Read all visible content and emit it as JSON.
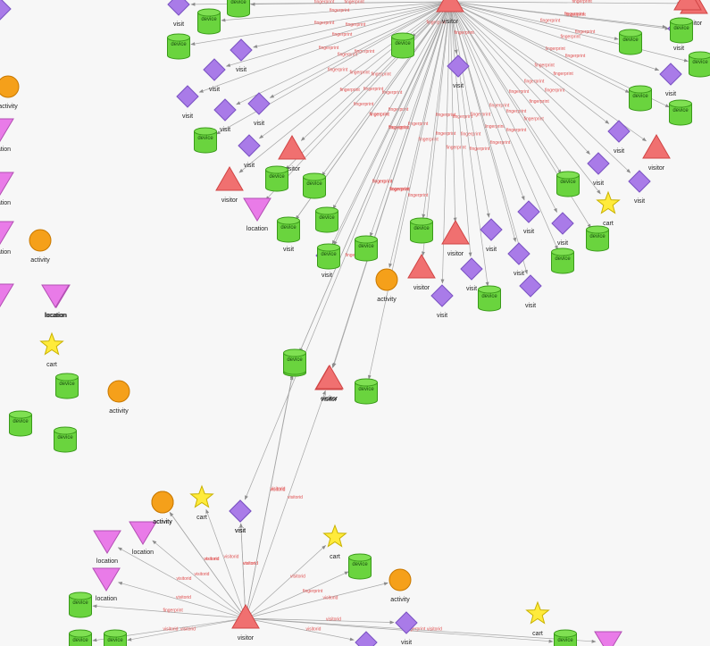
{
  "legend_colors": {
    "visitor": "#f07070",
    "device": "#6ad43e",
    "visit": "#a97be8",
    "activity": "#f5a01a",
    "location": "#e97be8",
    "cart": "#ffeb3b",
    "edge_label": "#e05050"
  },
  "labels": {
    "visitor": "visitor",
    "device": "device",
    "visit": "visit",
    "activity": "activity",
    "location": "location",
    "cart": "cart",
    "fingerprint": "fingerprint",
    "visitorid": "visitorid"
  },
  "graph": {
    "nodes": [
      {
        "id": "hubA",
        "type": "visitor",
        "label": "visitor",
        "show": true
      },
      {
        "id": "hubB",
        "type": "visitor",
        "label": "visitor",
        "show": true
      },
      {
        "id": "n1",
        "type": "visit",
        "label": "visit",
        "show": true
      },
      {
        "id": "n2",
        "type": "device",
        "label": "device",
        "show": false
      },
      {
        "id": "n3",
        "type": "device",
        "label": "device",
        "show": false
      },
      {
        "id": "n4",
        "type": "device",
        "label": "device",
        "show": false
      },
      {
        "id": "n5",
        "type": "visit",
        "label": "visit",
        "show": true
      },
      {
        "id": "n6",
        "type": "visit",
        "label": "visit",
        "show": true
      },
      {
        "id": "n7",
        "type": "visit",
        "label": "visit",
        "show": true
      },
      {
        "id": "n8",
        "type": "visit",
        "label": "visit",
        "show": true
      },
      {
        "id": "n9",
        "type": "visit",
        "label": "visit",
        "show": true
      },
      {
        "id": "n10",
        "type": "device",
        "label": "device",
        "show": false
      },
      {
        "id": "n11",
        "type": "visitor",
        "label": "visitor",
        "show": true
      },
      {
        "id": "n12",
        "type": "visitor",
        "label": "visitor",
        "show": true
      },
      {
        "id": "n13",
        "type": "device",
        "label": "device",
        "show": false
      },
      {
        "id": "n14",
        "type": "location",
        "label": "location",
        "show": true
      },
      {
        "id": "n15",
        "type": "visit",
        "label": "visit",
        "show": true
      },
      {
        "id": "n16",
        "type": "device",
        "label": "device",
        "show": false
      },
      {
        "id": "n17",
        "type": "visit",
        "label": "visit",
        "show": true
      },
      {
        "id": "n18",
        "type": "device",
        "label": "device",
        "show": false
      },
      {
        "id": "n19",
        "type": "visit",
        "label": "visit",
        "show": true
      },
      {
        "id": "n20",
        "type": "activity",
        "label": "activity",
        "show": true
      },
      {
        "id": "n21",
        "type": "device",
        "label": "device",
        "show": false
      },
      {
        "id": "n22",
        "type": "visitor",
        "label": "visitor",
        "show": true
      },
      {
        "id": "n23",
        "type": "visitor",
        "label": "visitor",
        "show": true
      },
      {
        "id": "n24",
        "type": "visit",
        "label": "visit",
        "show": true
      },
      {
        "id": "n25",
        "type": "visit",
        "label": "visit",
        "show": true
      },
      {
        "id": "n26",
        "type": "visit",
        "label": "visit",
        "show": true
      },
      {
        "id": "n27",
        "type": "visit",
        "label": "visit",
        "show": true
      },
      {
        "id": "n28",
        "type": "device",
        "label": "device",
        "show": false
      },
      {
        "id": "n29",
        "type": "visit",
        "label": "visit",
        "show": true
      },
      {
        "id": "n30",
        "type": "visit",
        "label": "visit",
        "show": true
      },
      {
        "id": "n31",
        "type": "visit",
        "label": "visit",
        "show": true
      },
      {
        "id": "n32",
        "type": "device",
        "label": "device",
        "show": false
      },
      {
        "id": "n33",
        "type": "device",
        "label": "device",
        "show": false
      },
      {
        "id": "n34",
        "type": "device",
        "label": "device",
        "show": false
      },
      {
        "id": "n35",
        "type": "visit",
        "label": "visit",
        "show": true
      },
      {
        "id": "n36",
        "type": "cart",
        "label": "cart",
        "show": true
      },
      {
        "id": "n37",
        "type": "visit",
        "label": "visit",
        "show": true
      },
      {
        "id": "n38",
        "type": "visitor",
        "label": "visitor",
        "show": true
      },
      {
        "id": "n39",
        "type": "visit",
        "label": "visit",
        "show": true
      },
      {
        "id": "n40",
        "type": "visit",
        "label": "visit",
        "show": true
      },
      {
        "id": "n41",
        "type": "device",
        "label": "device",
        "show": false
      },
      {
        "id": "n42",
        "type": "device",
        "label": "device",
        "show": false
      },
      {
        "id": "n43",
        "type": "visit",
        "label": "visit",
        "show": true
      },
      {
        "id": "n44",
        "type": "device",
        "label": "device",
        "show": false
      },
      {
        "id": "n45",
        "type": "device",
        "label": "device",
        "show": false
      },
      {
        "id": "n46",
        "type": "visitor",
        "label": "visitor",
        "show": true
      },
      {
        "id": "n47",
        "type": "device",
        "label": "device",
        "show": false
      },
      {
        "id": "n48",
        "type": "device",
        "label": "device",
        "show": false
      },
      {
        "id": "n49",
        "type": "device",
        "label": "device",
        "show": false
      },
      {
        "id": "n50",
        "type": "visit",
        "label": "visit",
        "show": true
      },
      {
        "id": "n51",
        "type": "visitor",
        "label": "visitor",
        "show": true
      },
      {
        "id": "n52",
        "type": "device",
        "label": "device",
        "show": false
      },
      {
        "id": "n53",
        "type": "visit",
        "label": "visit",
        "show": true
      },
      {
        "id": "n54",
        "type": "device",
        "label": "device",
        "show": false
      },
      {
        "id": "n55",
        "type": "device",
        "label": "device",
        "show": false
      },
      {
        "id": "n56",
        "type": "device",
        "label": "device",
        "show": false
      },
      {
        "id": "n57",
        "type": "visitor",
        "label": "visitor",
        "show": true
      },
      {
        "id": "n58",
        "type": "device",
        "label": "device",
        "show": false
      },
      {
        "id": "n59",
        "type": "activity",
        "label": "activity",
        "show": true
      },
      {
        "id": "n60",
        "type": "location",
        "label": "location",
        "show": true
      },
      {
        "id": "n61",
        "type": "activity",
        "label": "activity",
        "show": true
      },
      {
        "id": "n62",
        "type": "location",
        "label": "location",
        "show": true
      },
      {
        "id": "n63",
        "type": "location",
        "label": "location",
        "show": true
      },
      {
        "id": "n64",
        "type": "location",
        "label": "location",
        "show": true
      },
      {
        "id": "n65",
        "type": "activity",
        "label": "activity",
        "show": true
      },
      {
        "id": "n66",
        "type": "location",
        "label": "location",
        "show": true
      },
      {
        "id": "n67",
        "type": "cart",
        "label": "cart",
        "show": true
      },
      {
        "id": "n68",
        "type": "device",
        "label": "device",
        "show": false
      },
      {
        "id": "n69",
        "type": "activity",
        "label": "activity",
        "show": true
      },
      {
        "id": "n70",
        "type": "device",
        "label": "device",
        "show": false
      },
      {
        "id": "n71",
        "type": "device",
        "label": "device",
        "show": false
      },
      {
        "id": "n72",
        "type": "activity",
        "label": "activity",
        "show": true
      },
      {
        "id": "n73",
        "type": "cart",
        "label": "cart",
        "show": true
      },
      {
        "id": "n74",
        "type": "visit",
        "label": "visit",
        "show": true
      },
      {
        "id": "n75",
        "type": "location",
        "label": "location",
        "show": true
      },
      {
        "id": "n76",
        "type": "location",
        "label": "location",
        "show": true
      },
      {
        "id": "n77",
        "type": "location",
        "label": "location",
        "show": true
      },
      {
        "id": "n78",
        "type": "device",
        "label": "device",
        "show": false
      },
      {
        "id": "n79",
        "type": "cart",
        "label": "cart",
        "show": true
      },
      {
        "id": "n80",
        "type": "device",
        "label": "device",
        "show": false
      },
      {
        "id": "n81",
        "type": "activity",
        "label": "activity",
        "show": true
      },
      {
        "id": "n82",
        "type": "visit",
        "label": "visit",
        "show": true
      },
      {
        "id": "n83",
        "type": "visit",
        "label": "visit",
        "show": true
      },
      {
        "id": "n84",
        "type": "device",
        "label": "device",
        "show": false
      },
      {
        "id": "n85",
        "type": "cart",
        "label": "cart",
        "show": true
      },
      {
        "id": "n86",
        "type": "device",
        "label": "device",
        "show": false
      },
      {
        "id": "n87",
        "type": "location",
        "label": "location",
        "show": false
      },
      {
        "id": "n88",
        "type": "device",
        "label": "device",
        "show": false
      },
      {
        "id": "n89",
        "type": "device",
        "label": "device",
        "show": false
      },
      {
        "id": "n90",
        "type": "location",
        "label": "location",
        "show": false
      },
      {
        "id": "n91",
        "type": "visit",
        "label": "visit",
        "show": false
      },
      {
        "id": "n92",
        "type": "visitor",
        "label": "visitor",
        "show": false
      }
    ],
    "edges": [
      {
        "s": "hubA",
        "t": "n1",
        "label": "fingerprint"
      },
      {
        "s": "hubA",
        "t": "n2",
        "label": "fingerprint"
      },
      {
        "s": "hubA",
        "t": "n3",
        "label": "fingerprint"
      },
      {
        "s": "hubA",
        "t": "n4",
        "label": "fingerprint"
      },
      {
        "s": "hubA",
        "t": "n5",
        "label": "fingerprint"
      },
      {
        "s": "hubA",
        "t": "n6",
        "label": "fingerprint"
      },
      {
        "s": "hubA",
        "t": "n7",
        "label": "fingerprint"
      },
      {
        "s": "hubA",
        "t": "n8",
        "label": "fingerprint"
      },
      {
        "s": "hubA",
        "t": "n9",
        "label": "fingerprint"
      },
      {
        "s": "hubA",
        "t": "n10",
        "label": "fingerprint"
      },
      {
        "s": "hubA",
        "t": "n11",
        "label": "fingerprint"
      },
      {
        "s": "hubA",
        "t": "n12",
        "label": "fingerprint"
      },
      {
        "s": "hubA",
        "t": "n13",
        "label": "fingerprint"
      },
      {
        "s": "hubA",
        "t": "n14",
        "label": "fingerprint"
      },
      {
        "s": "hubA",
        "t": "n15",
        "label": "fingerprint"
      },
      {
        "s": "hubA",
        "t": "n16",
        "label": "fingerprint"
      },
      {
        "s": "hubA",
        "t": "n17",
        "label": "fingerprint"
      },
      {
        "s": "hubA",
        "t": "n18",
        "label": "fingerprint"
      },
      {
        "s": "hubA",
        "t": "n19",
        "label": "fingerprint"
      },
      {
        "s": "hubA",
        "t": "n20",
        "label": "fingerprint"
      },
      {
        "s": "hubA",
        "t": "n21",
        "label": "fingerprint"
      },
      {
        "s": "hubA",
        "t": "n22",
        "label": "fingerprint"
      },
      {
        "s": "hubA",
        "t": "n23",
        "label": "fingerprint"
      },
      {
        "s": "hubA",
        "t": "n24",
        "label": "fingerprint"
      },
      {
        "s": "hubA",
        "t": "n25",
        "label": "fingerprint"
      },
      {
        "s": "hubA",
        "t": "n26",
        "label": "fingerprint"
      },
      {
        "s": "hubA",
        "t": "n27",
        "label": "fingerprint"
      },
      {
        "s": "hubA",
        "t": "n28",
        "label": "fingerprint"
      },
      {
        "s": "hubA",
        "t": "n29",
        "label": "fingerprint"
      },
      {
        "s": "hubA",
        "t": "n30",
        "label": "fingerprint"
      },
      {
        "s": "hubA",
        "t": "n31",
        "label": "fingerprint"
      },
      {
        "s": "hubA",
        "t": "n32",
        "label": "fingerprint"
      },
      {
        "s": "hubA",
        "t": "n33",
        "label": "fingerprint"
      },
      {
        "s": "hubA",
        "t": "n34",
        "label": "fingerprint"
      },
      {
        "s": "hubA",
        "t": "n35",
        "label": "fingerprint"
      },
      {
        "s": "hubA",
        "t": "n36",
        "label": "fingerprint"
      },
      {
        "s": "hubA",
        "t": "n37",
        "label": "fingerprint"
      },
      {
        "s": "hubA",
        "t": "n38",
        "label": "fingerprint"
      },
      {
        "s": "hubA",
        "t": "n39",
        "label": "fingerprint"
      },
      {
        "s": "hubA",
        "t": "n40",
        "label": "fingerprint"
      },
      {
        "s": "hubA",
        "t": "n41",
        "label": "fingerprint"
      },
      {
        "s": "hubA",
        "t": "n42",
        "label": "fingerprint"
      },
      {
        "s": "hubA",
        "t": "n43",
        "label": "fingerprint"
      },
      {
        "s": "hubA",
        "t": "n44",
        "label": "fingerprint"
      },
      {
        "s": "hubA",
        "t": "n45",
        "label": "fingerprint"
      },
      {
        "s": "hubA",
        "t": "n46",
        "label": "fingerprint"
      },
      {
        "s": "hubA",
        "t": "n47",
        "label": "fingerprint"
      },
      {
        "s": "hubA",
        "t": "n48",
        "label": "fingerprint"
      },
      {
        "s": "hubA",
        "t": "n49",
        "label": "fingerprint"
      },
      {
        "s": "hubA",
        "t": "n50",
        "label": "fingerprint"
      },
      {
        "s": "hubA",
        "t": "n51",
        "label": "fingerprint"
      },
      {
        "s": "hubA",
        "t": "n52",
        "label": "fingerprint"
      },
      {
        "s": "hubA",
        "t": "n53",
        "label": "fingerprint"
      },
      {
        "s": "hubA",
        "t": "n54",
        "label": "fingerprint"
      },
      {
        "s": "hubA",
        "t": "n55",
        "label": "fingerprint"
      },
      {
        "s": "hubA",
        "t": "n56",
        "label": "fingerprint"
      },
      {
        "s": "hubA",
        "t": "n57",
        "label": "fingerprint"
      },
      {
        "s": "hubA",
        "t": "n58",
        "label": "fingerprint"
      },
      {
        "s": "hubB",
        "t": "n58",
        "label": "visitorid"
      },
      {
        "s": "hubB",
        "t": "n57",
        "label": "visitorid"
      },
      {
        "s": "hubB",
        "t": "n53",
        "label": "visitorid"
      },
      {
        "s": "hubB",
        "t": "n59",
        "label": "visitorid"
      },
      {
        "s": "hubB",
        "t": "n73",
        "label": "visitorid"
      },
      {
        "s": "hubB",
        "t": "n74",
        "label": "visitorid"
      },
      {
        "s": "hubB",
        "t": "n75",
        "label": "visitorid"
      },
      {
        "s": "hubB",
        "t": "n76",
        "label": "visitorid"
      },
      {
        "s": "hubB",
        "t": "n77",
        "label": "visitorid"
      },
      {
        "s": "hubB",
        "t": "n78",
        "label": "fingerprint"
      },
      {
        "s": "hubB",
        "t": "n79",
        "label": "visitorid"
      },
      {
        "s": "hubB",
        "t": "n80",
        "label": "fingerprint"
      },
      {
        "s": "hubB",
        "t": "n81",
        "label": "visitorid"
      },
      {
        "s": "hubB",
        "t": "n82",
        "label": "visitorid"
      },
      {
        "s": "hubB",
        "t": "n83",
        "label": "visitorid"
      },
      {
        "s": "hubB",
        "t": "n72",
        "label": "visitorid"
      },
      {
        "s": "hubB",
        "t": "n84",
        "label": "visitorid"
      },
      {
        "s": "hubB",
        "t": "n86",
        "label": "fingerprint"
      },
      {
        "s": "hubB",
        "t": "n87",
        "label": "visitorid"
      },
      {
        "s": "hubB",
        "t": "n88",
        "label": "visitorid"
      },
      {
        "s": "hubB",
        "t": "n89",
        "label": "visitorid"
      }
    ]
  }
}
